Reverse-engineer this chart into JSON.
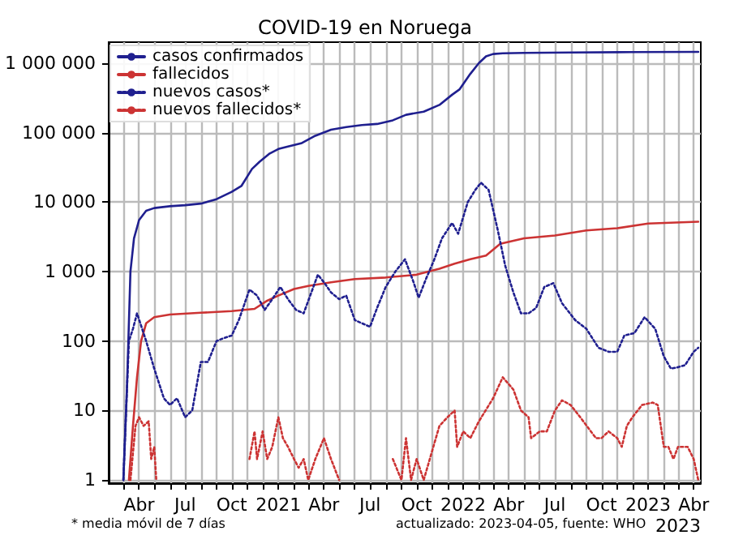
{
  "chart_data": {
    "type": "line",
    "title": "COVID-19 en Noruega",
    "log": "y",
    "grid": true,
    "legend": "top left",
    "marker": "none",
    "annotations": [
      "* media móvil de 7 días",
      "actualizado: 2023-04-05, fuente: WHO",
      "2023"
    ],
    "xlim": [
      "2020-02-01",
      "2023-04-15"
    ],
    "xticks": [
      {
        "value": "2020-03-01",
        "label": null
      },
      {
        "value": "2020-04-01",
        "label": "Abr"
      },
      {
        "value": "2020-05-01",
        "label": null
      },
      {
        "value": "2020-06-01",
        "label": null
      },
      {
        "value": "2020-07-01",
        "label": "Jul"
      },
      {
        "value": "2020-08-01",
        "label": null
      },
      {
        "value": "2020-09-01",
        "label": null
      },
      {
        "value": "2020-10-01",
        "label": "Oct"
      },
      {
        "value": "2020-11-01",
        "label": null
      },
      {
        "value": "2020-12-01",
        "label": null
      },
      {
        "value": "2021-01-01",
        "label": "2021"
      },
      {
        "value": "2021-02-01",
        "label": null
      },
      {
        "value": "2021-03-01",
        "label": null
      },
      {
        "value": "2021-04-01",
        "label": "Abr"
      },
      {
        "value": "2021-05-01",
        "label": null
      },
      {
        "value": "2021-06-01",
        "label": null
      },
      {
        "value": "2021-07-01",
        "label": "Jul"
      },
      {
        "value": "2021-08-01",
        "label": null
      },
      {
        "value": "2021-09-01",
        "label": null
      },
      {
        "value": "2021-10-01",
        "label": "Oct"
      },
      {
        "value": "2021-11-01",
        "label": null
      },
      {
        "value": "2021-12-01",
        "label": null
      },
      {
        "value": "2022-01-01",
        "label": "2022"
      },
      {
        "value": "2022-02-01",
        "label": null
      },
      {
        "value": "2022-03-01",
        "label": null
      },
      {
        "value": "2022-04-01",
        "label": "Abr"
      },
      {
        "value": "2022-05-01",
        "label": null
      },
      {
        "value": "2022-06-01",
        "label": null
      },
      {
        "value": "2022-07-01",
        "label": "Jul"
      },
      {
        "value": "2022-08-01",
        "label": null
      },
      {
        "value": "2022-09-01",
        "label": null
      },
      {
        "value": "2022-10-01",
        "label": "Oct"
      },
      {
        "value": "2022-11-01",
        "label": null
      },
      {
        "value": "2022-12-01",
        "label": null
      },
      {
        "value": "2023-01-01",
        "label": "2023"
      },
      {
        "value": "2023-02-01",
        "label": null
      },
      {
        "value": "2023-03-01",
        "label": null
      },
      {
        "value": "2023-04-01",
        "label": "Abr"
      }
    ],
    "ylim": [
      0.9,
      2000000
    ],
    "yticks": [
      1,
      10,
      100,
      {
        "value": 1000,
        "label": "1 000"
      },
      {
        "value": 10000,
        "label": "10 000"
      },
      {
        "value": 100000,
        "label": "100 000"
      },
      {
        "value": 1000000,
        "label": "1 000 000"
      }
    ],
    "series": [
      {
        "name": "casos confirmados",
        "color": "#1f1f8f",
        "line_style": "solid",
        "x": [
          "2020-03-01",
          "2020-03-08",
          "2020-03-15",
          "2020-03-22",
          "2020-04-01",
          "2020-04-15",
          "2020-05-01",
          "2020-06-01",
          "2020-07-01",
          "2020-08-01",
          "2020-09-01",
          "2020-10-01",
          "2020-10-20",
          "2020-11-10",
          "2020-11-25",
          "2020-12-15",
          "2021-01-01",
          "2021-01-20",
          "2021-02-15",
          "2021-03-15",
          "2021-04-15",
          "2021-05-15",
          "2021-06-15",
          "2021-07-15",
          "2021-08-15",
          "2021-09-10",
          "2021-10-15",
          "2021-11-15",
          "2021-12-10",
          "2021-12-25",
          "2022-01-15",
          "2022-02-01",
          "2022-02-15",
          "2022-03-01",
          "2022-03-20",
          "2022-05-01",
          "2022-08-01",
          "2022-12-01",
          "2023-04-10"
        ],
        "values": [
          1,
          20,
          1000,
          3000,
          5500,
          7500,
          8200,
          8700,
          9000,
          9500,
          11000,
          14000,
          17000,
          30000,
          38000,
          50000,
          58000,
          63000,
          70000,
          90000,
          110000,
          120000,
          128000,
          133000,
          150000,
          180000,
          200000,
          250000,
          350000,
          420000,
          700000,
          1000000,
          1250000,
          1350000,
          1380000,
          1400000,
          1420000,
          1440000,
          1450000
        ]
      },
      {
        "name": "fallecidos",
        "color": "#cc3333",
        "line_style": "solid",
        "x": [
          "2020-03-12",
          "2020-03-20",
          "2020-03-28",
          "2020-04-05",
          "2020-04-15",
          "2020-05-01",
          "2020-06-01",
          "2020-08-01",
          "2020-10-01",
          "2020-11-15",
          "2020-12-10",
          "2021-01-01",
          "2021-02-01",
          "2021-03-01",
          "2021-04-15",
          "2021-06-01",
          "2021-08-01",
          "2021-10-01",
          "2021-11-15",
          "2021-12-15",
          "2022-01-15",
          "2022-02-15",
          "2022-03-15",
          "2022-05-01",
          "2022-07-01",
          "2022-09-01",
          "2022-11-01",
          "2023-01-01",
          "2023-04-10"
        ],
        "values": [
          1,
          6,
          30,
          100,
          180,
          220,
          240,
          255,
          270,
          290,
          380,
          450,
          560,
          620,
          700,
          780,
          820,
          900,
          1100,
          1300,
          1500,
          1700,
          2500,
          3000,
          3300,
          3900,
          4200,
          4900,
          5200
        ]
      },
      {
        "name": "nuevos casos*",
        "color": "#1f1f8f",
        "line_style": "dotted",
        "x": [
          "2020-03-01",
          "2020-03-12",
          "2020-03-20",
          "2020-03-28",
          "2020-04-15",
          "2020-05-01",
          "2020-05-20",
          "2020-06-01",
          "2020-06-15",
          "2020-07-01",
          "2020-07-15",
          "2020-08-01",
          "2020-08-15",
          "2020-09-01",
          "2020-09-15",
          "2020-10-01",
          "2020-10-15",
          "2020-11-05",
          "2020-11-20",
          "2020-12-05",
          "2020-12-20",
          "2021-01-05",
          "2021-01-20",
          "2021-02-05",
          "2021-02-20",
          "2021-03-20",
          "2021-04-01",
          "2021-04-15",
          "2021-05-01",
          "2021-05-15",
          "2021-06-01",
          "2021-06-15",
          "2021-07-01",
          "2021-07-15",
          "2021-08-01",
          "2021-08-20",
          "2021-09-08",
          "2021-09-25",
          "2021-10-05",
          "2021-10-20",
          "2021-11-05",
          "2021-11-20",
          "2021-12-10",
          "2021-12-22",
          "2022-01-10",
          "2022-01-25",
          "2022-02-05",
          "2022-02-20",
          "2022-03-10",
          "2022-03-25",
          "2022-04-10",
          "2022-04-25",
          "2022-05-10",
          "2022-05-25",
          "2022-06-10",
          "2022-06-28",
          "2022-07-15",
          "2022-08-10",
          "2022-09-01",
          "2022-09-25",
          "2022-10-15",
          "2022-11-01",
          "2022-11-15",
          "2022-12-05",
          "2022-12-25",
          "2023-01-15",
          "2023-02-01",
          "2023-02-15",
          "2023-03-01",
          "2023-03-15",
          "2023-04-01",
          "2023-04-10"
        ],
        "values": [
          1,
          100,
          150,
          250,
          100,
          40,
          15,
          12,
          15,
          8,
          10,
          50,
          50,
          100,
          110,
          120,
          200,
          550,
          450,
          280,
          400,
          600,
          400,
          280,
          250,
          900,
          700,
          500,
          400,
          450,
          200,
          180,
          160,
          300,
          600,
          1000,
          1500,
          700,
          420,
          800,
          1500,
          3000,
          5000,
          3500,
          10000,
          15000,
          19000,
          15000,
          4000,
          1200,
          500,
          250,
          250,
          300,
          600,
          680,
          350,
          200,
          150,
          80,
          70,
          70,
          120,
          130,
          220,
          150,
          60,
          40,
          42,
          45,
          70,
          80
        ]
      },
      {
        "name": "nuevos fallecidos*",
        "color": "#cc3333",
        "line_style": "dotted",
        "x": [
          "2020-03-15",
          "2020-03-25",
          "2020-04-01",
          "2020-04-10",
          "2020-04-20",
          "2020-04-25",
          "2020-05-01",
          "2020-05-05",
          "2020-05-08",
          "2020-11-05",
          "2020-11-15",
          "2020-11-20",
          "2020-12-01",
          "2020-12-10",
          "2020-12-20",
          "2021-01-01",
          "2021-01-10",
          "2021-01-20",
          "2021-02-01",
          "2021-02-10",
          "2021-02-20",
          "2021-03-01",
          "2021-03-15",
          "2021-04-01",
          "2021-04-15",
          "2021-05-01",
          "2021-05-05",
          "2021-08-15",
          "2021-09-01",
          "2021-09-10",
          "2021-09-20",
          "2021-10-01",
          "2021-10-15",
          "2021-11-15",
          "2021-12-01",
          "2021-12-15",
          "2021-12-20",
          "2022-01-01",
          "2022-01-15",
          "2022-02-01",
          "2022-03-01",
          "2022-03-20",
          "2022-04-10",
          "2022-04-25",
          "2022-05-10",
          "2022-05-15",
          "2022-06-01",
          "2022-06-15",
          "2022-07-01",
          "2022-07-15",
          "2022-08-01",
          "2022-08-20",
          "2022-09-10",
          "2022-09-20",
          "2022-10-01",
          "2022-10-15",
          "2022-11-01",
          "2022-11-10",
          "2022-11-20",
          "2022-12-01",
          "2022-12-20",
          "2023-01-10",
          "2023-01-20",
          "2023-02-01",
          "2023-02-10",
          "2023-02-20",
          "2023-03-01",
          "2023-03-20",
          "2023-04-01",
          "2023-04-10"
        ],
        "values": [
          1,
          6,
          8,
          6,
          7,
          2,
          3,
          1,
          null,
          2,
          5,
          2,
          5,
          2,
          3,
          8,
          4,
          3,
          2,
          1.5,
          2,
          1,
          2,
          4,
          2,
          1,
          null,
          2,
          1,
          4,
          1,
          2,
          1,
          6,
          8,
          10,
          3,
          5,
          4,
          7,
          15,
          30,
          20,
          10,
          8,
          4,
          5,
          5,
          10,
          14,
          12,
          8,
          5,
          4,
          4,
          5,
          4,
          3,
          6,
          8,
          12,
          13,
          12,
          3,
          3,
          2,
          3,
          3,
          2,
          1
        ]
      }
    ]
  }
}
